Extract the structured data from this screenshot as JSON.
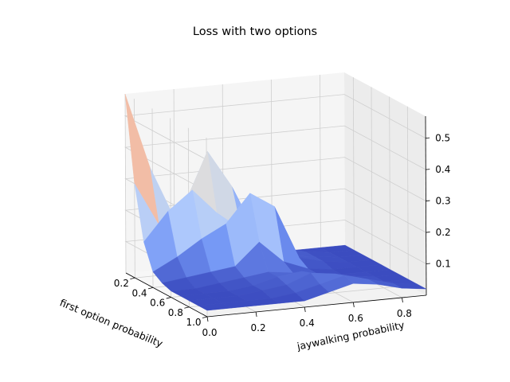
{
  "chart_data": {
    "type": "surface3d",
    "title": "Loss with two options",
    "xlabel": "first option probability",
    "ylabel": "jaywalking probability",
    "zlabel": "",
    "x_ticks": [
      "0.2",
      "0.4",
      "0.6",
      "0.8",
      "1.0"
    ],
    "y_ticks": [
      "0.0",
      "0.2",
      "0.4",
      "0.6",
      "0.8"
    ],
    "z_ticks": [
      "0.1",
      "0.2",
      "0.3",
      "0.4",
      "0.5"
    ],
    "xlim": [
      0.1,
      1.0
    ],
    "ylim": [
      0.0,
      0.9
    ],
    "zlim": [
      0.0,
      0.57
    ],
    "grid": true,
    "colormap": "coolwarm",
    "colormap_stops": [
      "#3b4cc0",
      "#7396f5",
      "#b0cbfc",
      "#dddddd",
      "#f6b79c",
      "#dc5d4a",
      "#b40426"
    ],
    "x": [
      0.1,
      0.2,
      0.3,
      0.4,
      0.5,
      0.6,
      0.7,
      0.8,
      0.9,
      1.0
    ],
    "y": [
      0.0,
      0.1,
      0.2,
      0.3,
      0.4,
      0.5,
      0.6,
      0.7,
      0.8,
      0.9
    ],
    "z": [
      [
        0.57,
        0.33,
        0.16,
        0.1,
        0.05,
        0.03,
        0.03,
        0.02,
        0.02,
        0.02
      ],
      [
        0.3,
        0.16,
        0.21,
        0.38,
        0.26,
        0.1,
        0.05,
        0.03,
        0.02,
        0.02
      ],
      [
        0.13,
        0.22,
        0.28,
        0.2,
        0.14,
        0.09,
        0.04,
        0.03,
        0.02,
        0.02
      ],
      [
        0.05,
        0.09,
        0.14,
        0.18,
        0.27,
        0.22,
        0.05,
        0.03,
        0.02,
        0.02
      ],
      [
        0.03,
        0.04,
        0.05,
        0.06,
        0.13,
        0.06,
        0.03,
        0.02,
        0.02,
        0.02
      ],
      [
        0.02,
        0.02,
        0.03,
        0.04,
        0.05,
        0.04,
        0.03,
        0.02,
        0.02,
        0.02
      ],
      [
        0.02,
        0.02,
        0.02,
        0.03,
        0.05,
        0.06,
        0.04,
        0.03,
        0.02,
        0.02
      ],
      [
        0.02,
        0.02,
        0.02,
        0.03,
        0.04,
        0.07,
        0.06,
        0.04,
        0.02,
        0.02
      ],
      [
        0.02,
        0.02,
        0.02,
        0.02,
        0.03,
        0.05,
        0.07,
        0.05,
        0.03,
        0.02
      ],
      [
        0.02,
        0.02,
        0.02,
        0.02,
        0.02,
        0.04,
        0.06,
        0.05,
        0.03,
        0.02
      ]
    ]
  }
}
